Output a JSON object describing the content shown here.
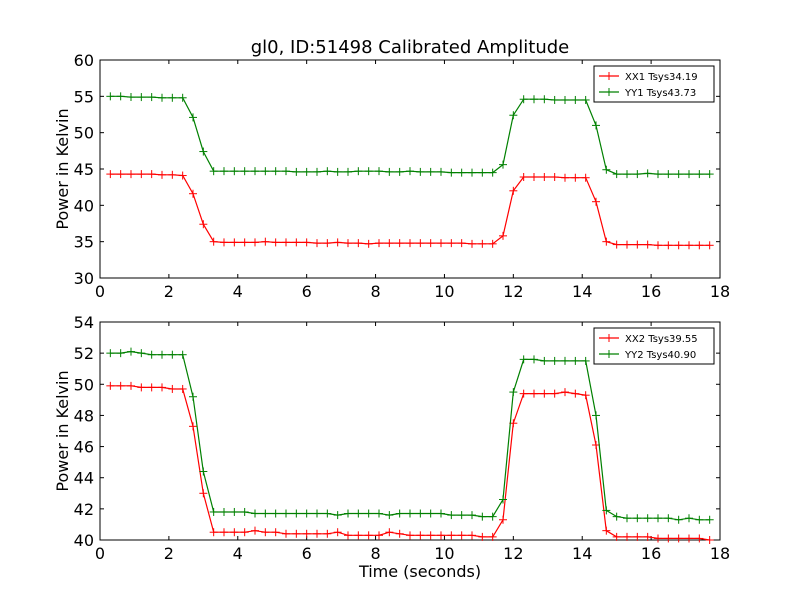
{
  "title": "gl0, ID:51498 Calibrated Amplitude",
  "chart_data": [
    {
      "type": "line",
      "xlabel": "",
      "ylabel": "Power in Kelvin",
      "xlim": [
        0,
        18
      ],
      "ylim": [
        30,
        60
      ],
      "xticks": [
        0,
        2,
        4,
        6,
        8,
        10,
        12,
        14,
        16,
        18
      ],
      "yticks": [
        30,
        35,
        40,
        45,
        50,
        55,
        60
      ],
      "grid": false,
      "legend": "top-right",
      "x": [
        0.3,
        0.6,
        0.9,
        1.2,
        1.5,
        1.8,
        2.1,
        2.4,
        2.7,
        3.0,
        3.3,
        3.6,
        3.9,
        4.2,
        4.5,
        4.8,
        5.1,
        5.4,
        5.7,
        6.0,
        6.3,
        6.6,
        6.9,
        7.2,
        7.5,
        7.8,
        8.1,
        8.4,
        8.7,
        9.0,
        9.3,
        9.6,
        9.9,
        10.2,
        10.5,
        10.8,
        11.1,
        11.4,
        11.7,
        12.0,
        12.3,
        12.6,
        12.9,
        13.2,
        13.5,
        13.8,
        14.1,
        14.4,
        14.7,
        15.0,
        15.3,
        15.6,
        15.9,
        16.2,
        16.5,
        16.8,
        17.1,
        17.4,
        17.7
      ],
      "series": [
        {
          "name": "XX1 Tsys34.19",
          "color": "#ff0000",
          "values": [
            44.3,
            44.3,
            44.3,
            44.3,
            44.3,
            44.2,
            44.2,
            44.1,
            41.6,
            37.4,
            35.0,
            34.9,
            34.9,
            34.9,
            34.9,
            35.0,
            34.9,
            34.9,
            34.9,
            34.9,
            34.8,
            34.8,
            34.9,
            34.8,
            34.8,
            34.7,
            34.8,
            34.8,
            34.8,
            34.8,
            34.8,
            34.8,
            34.8,
            34.8,
            34.8,
            34.7,
            34.7,
            34.7,
            35.8,
            42.0,
            43.9,
            43.9,
            43.9,
            43.9,
            43.8,
            43.8,
            43.8,
            40.5,
            35.0,
            34.6,
            34.6,
            34.6,
            34.6,
            34.5,
            34.5,
            34.5,
            34.5,
            34.5,
            34.5
          ]
        },
        {
          "name": "YY1 Tsys43.73",
          "color": "#008000",
          "values": [
            55.0,
            55.0,
            54.9,
            54.9,
            54.9,
            54.8,
            54.8,
            54.8,
            52.1,
            47.4,
            44.7,
            44.7,
            44.7,
            44.7,
            44.7,
            44.7,
            44.7,
            44.7,
            44.6,
            44.6,
            44.6,
            44.7,
            44.6,
            44.6,
            44.7,
            44.7,
            44.7,
            44.6,
            44.6,
            44.7,
            44.6,
            44.6,
            44.6,
            44.5,
            44.5,
            44.5,
            44.5,
            44.5,
            45.6,
            52.4,
            54.6,
            54.6,
            54.6,
            54.5,
            54.5,
            54.5,
            54.5,
            51.0,
            44.9,
            44.3,
            44.3,
            44.3,
            44.4,
            44.3,
            44.3,
            44.3,
            44.3,
            44.3,
            44.3
          ]
        }
      ]
    },
    {
      "type": "line",
      "xlabel": "Time (seconds)",
      "ylabel": "Power in Kelvin",
      "xlim": [
        0,
        18
      ],
      "ylim": [
        40,
        54
      ],
      "xticks": [
        0,
        2,
        4,
        6,
        8,
        10,
        12,
        14,
        16,
        18
      ],
      "yticks": [
        40,
        42,
        44,
        46,
        48,
        50,
        52,
        54
      ],
      "grid": false,
      "legend": "top-right",
      "x": [
        0.3,
        0.6,
        0.9,
        1.2,
        1.5,
        1.8,
        2.1,
        2.4,
        2.7,
        3.0,
        3.3,
        3.6,
        3.9,
        4.2,
        4.5,
        4.8,
        5.1,
        5.4,
        5.7,
        6.0,
        6.3,
        6.6,
        6.9,
        7.2,
        7.5,
        7.8,
        8.1,
        8.4,
        8.7,
        9.0,
        9.3,
        9.6,
        9.9,
        10.2,
        10.5,
        10.8,
        11.1,
        11.4,
        11.7,
        12.0,
        12.3,
        12.6,
        12.9,
        13.2,
        13.5,
        13.8,
        14.1,
        14.4,
        14.7,
        15.0,
        15.3,
        15.6,
        15.9,
        16.2,
        16.5,
        16.8,
        17.1,
        17.4,
        17.7
      ],
      "series": [
        {
          "name": "XX2 Tsys39.55",
          "color": "#ff0000",
          "values": [
            49.9,
            49.9,
            49.9,
            49.8,
            49.8,
            49.8,
            49.7,
            49.7,
            47.3,
            43.0,
            40.5,
            40.5,
            40.5,
            40.5,
            40.6,
            40.5,
            40.5,
            40.4,
            40.4,
            40.4,
            40.4,
            40.4,
            40.5,
            40.3,
            40.3,
            40.3,
            40.3,
            40.5,
            40.4,
            40.3,
            40.3,
            40.3,
            40.3,
            40.3,
            40.3,
            40.3,
            40.2,
            40.2,
            41.3,
            47.5,
            49.4,
            49.4,
            49.4,
            49.4,
            49.5,
            49.4,
            49.3,
            46.1,
            40.6,
            40.2,
            40.2,
            40.2,
            40.2,
            40.1,
            40.1,
            40.1,
            40.1,
            40.1,
            40.0
          ]
        },
        {
          "name": "YY2 Tsys40.90",
          "color": "#008000",
          "values": [
            52.0,
            52.0,
            52.1,
            52.0,
            51.9,
            51.9,
            51.9,
            51.9,
            49.2,
            44.4,
            41.8,
            41.8,
            41.8,
            41.8,
            41.7,
            41.7,
            41.7,
            41.7,
            41.7,
            41.7,
            41.7,
            41.7,
            41.6,
            41.7,
            41.7,
            41.7,
            41.7,
            41.6,
            41.7,
            41.7,
            41.7,
            41.7,
            41.7,
            41.6,
            41.6,
            41.6,
            41.5,
            41.5,
            42.6,
            49.5,
            51.6,
            51.6,
            51.5,
            51.5,
            51.5,
            51.5,
            51.5,
            48.0,
            41.9,
            41.5,
            41.4,
            41.4,
            41.4,
            41.4,
            41.4,
            41.3,
            41.4,
            41.3,
            41.3
          ]
        }
      ]
    }
  ]
}
